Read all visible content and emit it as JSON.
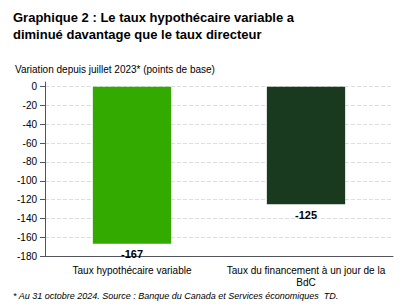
{
  "chart_data": {
    "type": "bar",
    "title": "Graphique 2 : Le taux hypothécaire variable a\ndiminué davantage que le taux directeur",
    "ylabel": "Variation depuis juillet 2023* (points de base)",
    "footnote": "* Au 31 octobre 2024. Source : Banque du Canada et Services économiques  TD.",
    "categories": [
      "Taux hypothécaire variable",
      "Taux du financement à un jour de la\nBdC"
    ],
    "values": [
      -167,
      -125
    ],
    "colors": [
      "#33aa00",
      "#1a3a20"
    ],
    "ylim": [
      -180,
      5
    ],
    "yticks": [
      0,
      -20,
      -40,
      -60,
      -80,
      -100,
      -120,
      -140,
      -160,
      -180
    ],
    "grid": true,
    "data_labels": true
  }
}
